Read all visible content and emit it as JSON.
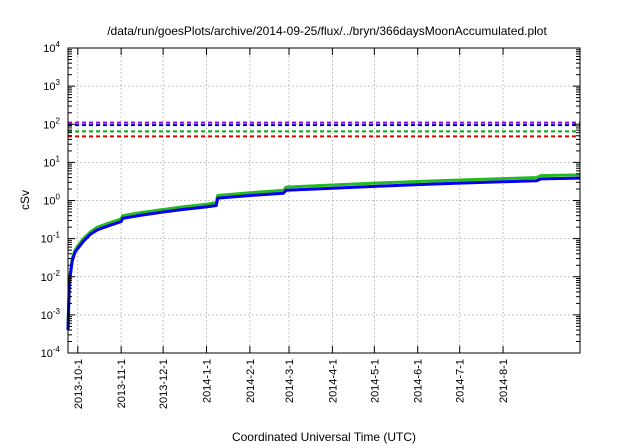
{
  "chart_data": {
    "type": "line",
    "title": "/data/run/goesPlots/archive/2014-09-25/flux/../bryn/366daysMoonAccumulated.plot",
    "xlabel": "Coordinated Universal Time (UTC)",
    "ylabel": "cSv",
    "yscale": "log",
    "ylim": [
      0.0001,
      10000
    ],
    "xlim": [
      "2013-09-24",
      "2014-09-25"
    ],
    "grid": true,
    "x_ticks": [
      "2013-10-1",
      "2013-11-1",
      "2013-12-1",
      "2014-1-1",
      "2014-2-1",
      "2014-3-1",
      "2014-4-1",
      "2014-5-1",
      "2014-6-1",
      "2014-7-1",
      "2014-8-1"
    ],
    "y_ticks": [
      {
        "value": 0.0001,
        "base": "10",
        "exp": "-4"
      },
      {
        "value": 0.001,
        "base": "10",
        "exp": "-3"
      },
      {
        "value": 0.01,
        "base": "10",
        "exp": "-2"
      },
      {
        "value": 0.1,
        "base": "10",
        "exp": "-1"
      },
      {
        "value": 1,
        "base": "10",
        "exp": "0"
      },
      {
        "value": 10,
        "base": "10",
        "exp": "1"
      },
      {
        "value": 100,
        "base": "10",
        "exp": "2"
      },
      {
        "value": 1000,
        "base": "10",
        "exp": "3"
      },
      {
        "value": 10000,
        "base": "10",
        "exp": "4"
      }
    ],
    "thresholds": [
      {
        "value": 110,
        "color": "#9400d3"
      },
      {
        "value": 95,
        "color": "#0000cd"
      },
      {
        "value": 65,
        "color": "#00b000"
      },
      {
        "value": 48,
        "color": "#dd0000"
      }
    ],
    "series": [
      {
        "color": "#22bb22",
        "points": [
          [
            "2013-09-24",
            0.0005
          ],
          [
            "2013-09-25",
            0.008
          ],
          [
            "2013-09-27",
            0.03
          ],
          [
            "2013-09-29",
            0.05
          ],
          [
            "2013-10-01",
            0.065
          ],
          [
            "2013-10-05",
            0.1
          ],
          [
            "2013-10-10",
            0.15
          ],
          [
            "2013-10-15",
            0.2
          ],
          [
            "2013-10-25",
            0.27
          ],
          [
            "2013-11-01",
            0.33
          ],
          [
            "2013-11-02",
            0.4
          ],
          [
            "2013-11-15",
            0.48
          ],
          [
            "2013-12-01",
            0.58
          ],
          [
            "2013-12-15",
            0.68
          ],
          [
            "2014-01-01",
            0.8
          ],
          [
            "2014-01-08",
            0.88
          ],
          [
            "2014-01-09",
            1.35
          ],
          [
            "2014-02-01",
            1.6
          ],
          [
            "2014-02-25",
            1.85
          ],
          [
            "2014-02-27",
            2.25
          ],
          [
            "2014-04-01",
            2.55
          ],
          [
            "2014-05-01",
            2.85
          ],
          [
            "2014-06-01",
            3.15
          ],
          [
            "2014-07-01",
            3.45
          ],
          [
            "2014-08-01",
            3.75
          ],
          [
            "2014-08-25",
            4.0
          ],
          [
            "2014-08-28",
            4.5
          ],
          [
            "2014-09-25",
            4.7
          ]
        ]
      },
      {
        "color": "#0000ee",
        "points": [
          [
            "2013-09-24",
            0.0004
          ],
          [
            "2013-09-25",
            0.007
          ],
          [
            "2013-09-27",
            0.026
          ],
          [
            "2013-09-29",
            0.044
          ],
          [
            "2013-10-01",
            0.055
          ],
          [
            "2013-10-05",
            0.085
          ],
          [
            "2013-10-10",
            0.13
          ],
          [
            "2013-10-15",
            0.17
          ],
          [
            "2013-10-25",
            0.23
          ],
          [
            "2013-11-01",
            0.28
          ],
          [
            "2013-11-02",
            0.34
          ],
          [
            "2013-11-15",
            0.41
          ],
          [
            "2013-12-01",
            0.5
          ],
          [
            "2013-12-15",
            0.58
          ],
          [
            "2014-01-01",
            0.68
          ],
          [
            "2014-01-08",
            0.74
          ],
          [
            "2014-01-09",
            1.15
          ],
          [
            "2014-02-01",
            1.35
          ],
          [
            "2014-02-25",
            1.55
          ],
          [
            "2014-02-27",
            1.85
          ],
          [
            "2014-04-01",
            2.1
          ],
          [
            "2014-05-01",
            2.35
          ],
          [
            "2014-06-01",
            2.6
          ],
          [
            "2014-07-01",
            2.85
          ],
          [
            "2014-08-01",
            3.1
          ],
          [
            "2014-08-25",
            3.3
          ],
          [
            "2014-08-28",
            3.7
          ],
          [
            "2014-09-25",
            3.85
          ]
        ]
      }
    ]
  }
}
